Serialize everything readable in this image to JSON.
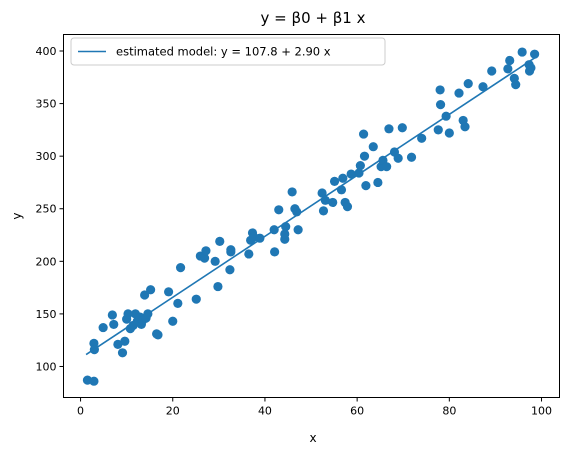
{
  "chart_data": {
    "type": "scatter",
    "title": "y = β0 + β1 x",
    "xlabel": "x",
    "ylabel": "y",
    "xlim": [
      -3.7,
      103.9
    ],
    "ylim": [
      70.5,
      415.7
    ],
    "xticks": [
      0,
      20,
      40,
      60,
      80,
      100
    ],
    "yticks": [
      100,
      150,
      200,
      250,
      300,
      350,
      400
    ],
    "grid": false,
    "legend_placement": "top-left",
    "colors": {
      "series": "#1f77b4"
    },
    "series": [
      {
        "name": "estimated model: y = 107.8 + 2.90 x",
        "kind": "line",
        "x": [
          1.2,
          98.7
        ],
        "y": [
          111.3,
          394.0
        ]
      },
      {
        "kind": "scatter",
        "points": [
          [
            1.5,
            87
          ],
          [
            2.9,
            86
          ],
          [
            2.9,
            122
          ],
          [
            3.0,
            116
          ],
          [
            4.9,
            137
          ],
          [
            6.9,
            149
          ],
          [
            7.2,
            140
          ],
          [
            8.1,
            121
          ],
          [
            9.1,
            113
          ],
          [
            9.6,
            124
          ],
          [
            10.0,
            145
          ],
          [
            10.3,
            150
          ],
          [
            10.8,
            136
          ],
          [
            11.4,
            139
          ],
          [
            11.9,
            150
          ],
          [
            12.3,
            143
          ],
          [
            12.9,
            147
          ],
          [
            13.2,
            140
          ],
          [
            13.5,
            144
          ],
          [
            13.9,
            168
          ],
          [
            14.2,
            146
          ],
          [
            14.6,
            150
          ],
          [
            15.2,
            173
          ],
          [
            16.5,
            131
          ],
          [
            16.8,
            130
          ],
          [
            19.1,
            171
          ],
          [
            20.0,
            143
          ],
          [
            21.1,
            160
          ],
          [
            21.7,
            194
          ],
          [
            25.1,
            164
          ],
          [
            26.0,
            205
          ],
          [
            26.9,
            203
          ],
          [
            27.2,
            210
          ],
          [
            29.2,
            200
          ],
          [
            29.8,
            176
          ],
          [
            30.2,
            219
          ],
          [
            32.4,
            192
          ],
          [
            32.6,
            209
          ],
          [
            32.6,
            211
          ],
          [
            36.5,
            207
          ],
          [
            36.9,
            220
          ],
          [
            37.3,
            227
          ],
          [
            37.6,
            223
          ],
          [
            38.9,
            222
          ],
          [
            42.0,
            230
          ],
          [
            42.1,
            209
          ],
          [
            43.0,
            249
          ],
          [
            44.3,
            221
          ],
          [
            44.3,
            226
          ],
          [
            44.5,
            233
          ],
          [
            45.9,
            266
          ],
          [
            46.5,
            250
          ],
          [
            46.9,
            247
          ],
          [
            47.2,
            230
          ],
          [
            52.4,
            265
          ],
          [
            52.7,
            248
          ],
          [
            53.1,
            258
          ],
          [
            54.7,
            256
          ],
          [
            55.1,
            276
          ],
          [
            56.6,
            268
          ],
          [
            56.9,
            279
          ],
          [
            57.4,
            256
          ],
          [
            57.9,
            252
          ],
          [
            58.7,
            283
          ],
          [
            60.4,
            284
          ],
          [
            60.7,
            291
          ],
          [
            61.4,
            321
          ],
          [
            61.6,
            300
          ],
          [
            61.9,
            272
          ],
          [
            63.5,
            309
          ],
          [
            64.5,
            275
          ],
          [
            65.2,
            290
          ],
          [
            65.6,
            296
          ],
          [
            66.4,
            290
          ],
          [
            66.9,
            326
          ],
          [
            68.1,
            304
          ],
          [
            68.9,
            298
          ],
          [
            69.8,
            327
          ],
          [
            71.8,
            299
          ],
          [
            74.0,
            317
          ],
          [
            77.6,
            325
          ],
          [
            78.0,
            363
          ],
          [
            78.1,
            349
          ],
          [
            79.3,
            338
          ],
          [
            80.0,
            322
          ],
          [
            82.1,
            360
          ],
          [
            83.0,
            334
          ],
          [
            83.4,
            328
          ],
          [
            84.1,
            369
          ],
          [
            87.3,
            366
          ],
          [
            89.2,
            381
          ],
          [
            92.7,
            383
          ],
          [
            93.1,
            391
          ],
          [
            94.1,
            374
          ],
          [
            94.4,
            368
          ],
          [
            95.8,
            399
          ],
          [
            97.3,
            387
          ],
          [
            97.4,
            381
          ],
          [
            97.7,
            384
          ],
          [
            98.5,
            397
          ]
        ]
      }
    ]
  }
}
